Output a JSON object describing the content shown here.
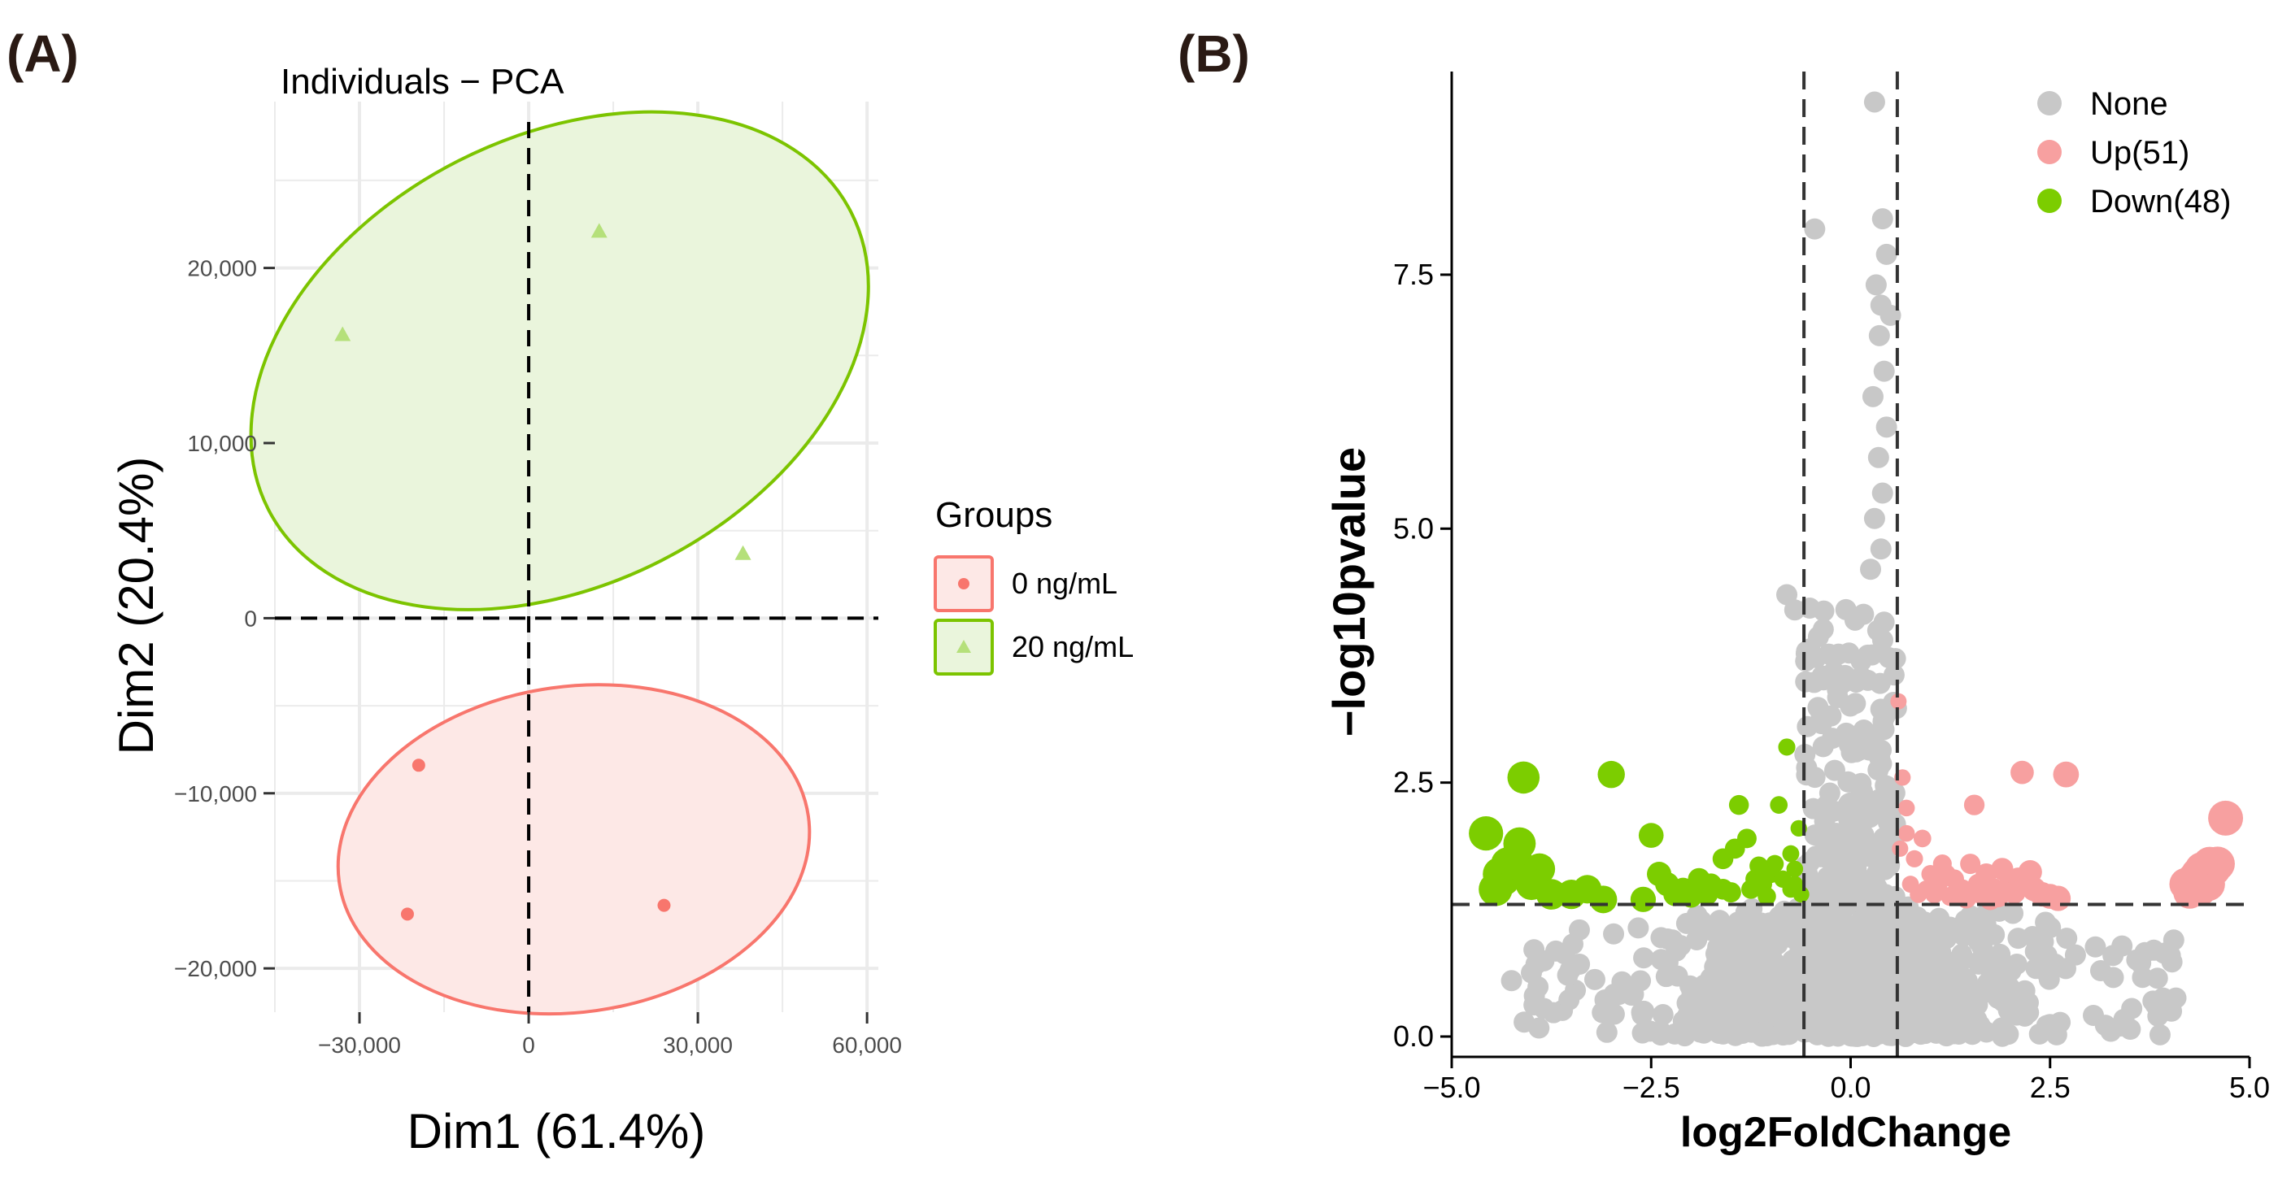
{
  "panels": {
    "a_label": "(A)",
    "b_label": "(B)"
  },
  "colors": {
    "red": "#f8766d",
    "green": "#7cc400",
    "red_fill": "#fde8e6",
    "green_fill": "#eaf5dc",
    "grey": "#c8c8c8",
    "up": "#f7a0a0",
    "down": "#7ccd00",
    "grid": "#ebebeb"
  },
  "chart_data": [
    {
      "type": "scatter",
      "title": "Individuals − PCA",
      "xlabel": "Dim1 (61.4%)",
      "ylabel": "Dim2 (20.4%)",
      "xlim": [
        -45000,
        62000
      ],
      "ylim": [
        -22500,
        29500
      ],
      "x_ticks": [
        -30000,
        0,
        30000,
        60000
      ],
      "x_tick_labels": [
        "−30,000",
        "0",
        "30,000",
        "60,000"
      ],
      "y_ticks": [
        -20000,
        -10000,
        0,
        10000,
        20000
      ],
      "y_tick_labels": [
        "−20,000",
        "−10,000",
        "0",
        "10,000",
        "20,000"
      ],
      "legend_title": "Groups",
      "legend_position": "right",
      "series": [
        {
          "name": "0 ng/mL",
          "marker": "circle",
          "points": [
            [
              -19500,
              -8400
            ],
            [
              -21500,
              -16900
            ],
            [
              24000,
              -16400
            ]
          ],
          "ellipse": {
            "center": [
              8000,
              -13200
            ],
            "half_axes": [
              42000,
              9300
            ],
            "angle_deg": -8
          }
        },
        {
          "name": "20 ng/mL",
          "marker": "triangle",
          "points": [
            [
              -33000,
              16200
            ],
            [
              12500,
              22100
            ],
            [
              38000,
              3700
            ]
          ],
          "ellipse": {
            "center": [
              5500,
              14700
            ],
            "half_axes": [
              58000,
              12800
            ],
            "angle_deg": -27
          }
        }
      ]
    },
    {
      "type": "scatter",
      "title": "",
      "xlabel": "log2FoldChange",
      "ylabel": "−log10pvalue",
      "xlim": [
        -5.0,
        5.0
      ],
      "ylim": [
        -0.2,
        9.5
      ],
      "x_ticks": [
        -5.0,
        -2.5,
        0.0,
        2.5,
        5.0
      ],
      "x_tick_labels": [
        "−5.0",
        "−2.5",
        "0.0",
        "2.5",
        "5.0"
      ],
      "y_ticks": [
        0.0,
        2.5,
        5.0,
        7.5
      ],
      "y_tick_labels": [
        "0.0",
        "2.5",
        "5.0",
        "7.5"
      ],
      "thresholds": {
        "fc": [
          -0.585,
          0.585
        ],
        "p": 1.301
      },
      "legend_position": "top-right",
      "legend": [
        "None",
        "Up(51)",
        "Down(48)"
      ],
      "highlight_points": {
        "down": [
          [
            -4.57,
            2.0
          ],
          [
            -4.4,
            1.6
          ],
          [
            -4.35,
            1.55
          ],
          [
            -4.2,
            1.75
          ],
          [
            -4.3,
            1.7
          ],
          [
            -4.15,
            1.9
          ],
          [
            -4.05,
            1.6
          ],
          [
            -4.1,
            2.55
          ],
          [
            -3.9,
            1.65
          ],
          [
            -3.5,
            1.4
          ],
          [
            -3.0,
            2.58
          ],
          [
            -3.1,
            1.35
          ],
          [
            -2.5,
            1.98
          ],
          [
            -2.3,
            1.5
          ],
          [
            -2.1,
            1.45
          ],
          [
            -1.9,
            1.55
          ],
          [
            -1.8,
            1.4
          ],
          [
            -1.6,
            1.45
          ],
          [
            -1.5,
            1.42
          ],
          [
            -1.4,
            2.28
          ],
          [
            -1.3,
            1.95
          ],
          [
            -1.2,
            1.55
          ],
          [
            -1.1,
            1.5
          ],
          [
            -1.0,
            1.6
          ],
          [
            -0.9,
            2.28
          ],
          [
            -0.85,
            1.55
          ],
          [
            -0.8,
            2.85
          ],
          [
            -0.75,
            1.45
          ],
          [
            -0.7,
            1.5
          ],
          [
            -0.65,
            2.05
          ],
          [
            -1.25,
            1.45
          ],
          [
            -1.75,
            1.5
          ],
          [
            -2.2,
            1.4
          ],
          [
            -2.6,
            1.35
          ],
          [
            -0.95,
            1.7
          ],
          [
            -1.45,
            1.85
          ],
          [
            -0.7,
            1.65
          ],
          [
            -3.3,
            1.45
          ],
          [
            -4.45,
            1.45
          ],
          [
            -3.75,
            1.4
          ],
          [
            -2.0,
            1.38
          ],
          [
            -1.05,
            1.38
          ],
          [
            -0.62,
            1.4
          ],
          [
            -2.4,
            1.6
          ],
          [
            -1.6,
            1.75
          ],
          [
            -4.0,
            1.5
          ],
          [
            -0.75,
            1.8
          ],
          [
            -1.15,
            1.68
          ]
        ],
        "up": [
          [
            0.6,
            3.3
          ],
          [
            0.65,
            2.55
          ],
          [
            0.7,
            2.0
          ],
          [
            0.8,
            1.75
          ],
          [
            0.9,
            1.95
          ],
          [
            1.0,
            1.6
          ],
          [
            1.1,
            1.5
          ],
          [
            1.2,
            1.6
          ],
          [
            1.3,
            1.55
          ],
          [
            1.4,
            1.45
          ],
          [
            1.5,
            1.7
          ],
          [
            1.6,
            1.5
          ],
          [
            1.7,
            1.6
          ],
          [
            1.8,
            1.45
          ],
          [
            1.9,
            1.65
          ],
          [
            2.0,
            1.5
          ],
          [
            2.1,
            1.55
          ],
          [
            2.15,
            2.6
          ],
          [
            2.3,
            1.45
          ],
          [
            2.4,
            1.4
          ],
          [
            2.7,
            2.58
          ],
          [
            1.55,
            2.28
          ],
          [
            4.2,
            1.5
          ],
          [
            4.3,
            1.55
          ],
          [
            4.35,
            1.6
          ],
          [
            4.4,
            1.65
          ],
          [
            4.45,
            1.6
          ],
          [
            4.5,
            1.7
          ],
          [
            4.55,
            1.65
          ],
          [
            4.6,
            1.7
          ],
          [
            4.7,
            2.15
          ],
          [
            0.75,
            1.5
          ],
          [
            0.85,
            1.4
          ],
          [
            1.05,
            1.4
          ],
          [
            1.25,
            1.38
          ],
          [
            1.45,
            1.36
          ],
          [
            1.65,
            1.4
          ],
          [
            1.85,
            1.38
          ],
          [
            2.05,
            1.42
          ],
          [
            2.5,
            1.38
          ],
          [
            4.25,
            1.42
          ],
          [
            4.48,
            1.5
          ],
          [
            0.62,
            1.85
          ],
          [
            0.95,
            1.45
          ],
          [
            1.15,
            1.7
          ],
          [
            1.75,
            1.35
          ],
          [
            2.25,
            1.62
          ],
          [
            0.7,
            2.25
          ],
          [
            4.38,
            1.45
          ],
          [
            1.35,
            1.42
          ],
          [
            2.6,
            1.36
          ]
        ],
        "none": [
          [
            0.3,
            9.2
          ],
          [
            0.4,
            8.05
          ],
          [
            0.45,
            7.7
          ],
          [
            -0.45,
            7.95
          ],
          [
            0.32,
            7.4
          ],
          [
            0.38,
            7.2
          ],
          [
            0.5,
            7.1
          ],
          [
            0.36,
            6.9
          ],
          [
            0.42,
            6.55
          ],
          [
            0.28,
            6.3
          ],
          [
            0.45,
            6.0
          ],
          [
            0.35,
            5.7
          ],
          [
            0.4,
            5.35
          ],
          [
            0.3,
            5.1
          ],
          [
            0.38,
            4.8
          ],
          [
            0.25,
            4.6
          ],
          [
            -0.8,
            4.35
          ],
          [
            -0.7,
            4.2
          ]
        ]
      }
    }
  ]
}
